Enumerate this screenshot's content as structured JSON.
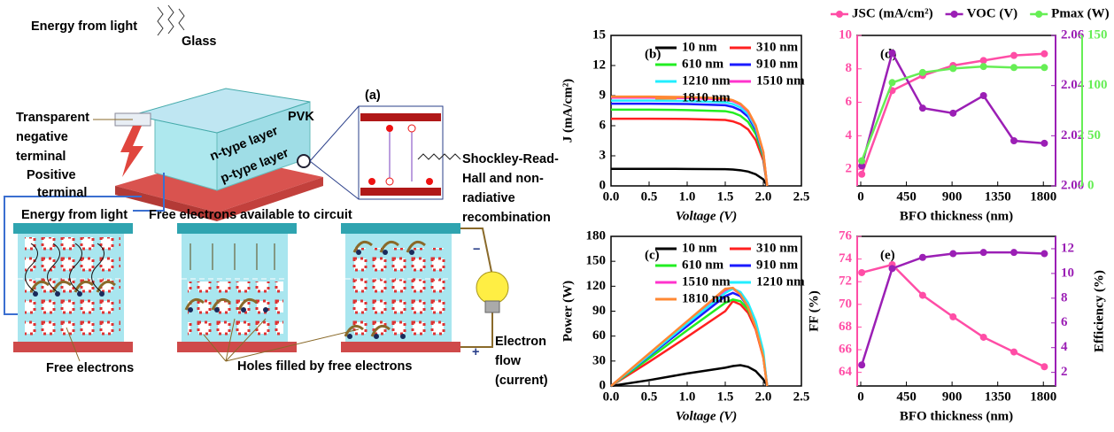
{
  "diagram": {
    "label": "(a)",
    "energy_from_light_top": "Energy from light",
    "glass": "Glass",
    "transparent_terminal": [
      "Transparent",
      "negative",
      "terminal"
    ],
    "pvk": "PVK",
    "n_layer": "n-type layer",
    "p_layer": "p-type layer",
    "positive_terminal": [
      "Positive",
      "terminal"
    ],
    "srh": [
      "Shockley-Read-",
      "Hall and non-",
      "radiative",
      "recombination"
    ],
    "energy_from_light": "Energy from light",
    "free_electrons_circuit": "Free electrons available to circuit",
    "free_electrons": "Free electrons",
    "holes_filled": "Holes filled by free electrons",
    "electron_flow": [
      "Electron",
      "flow",
      "(current)"
    ],
    "minus": "−",
    "plus": "+"
  },
  "chart_data": [
    {
      "type": "line",
      "title": "(b)",
      "xlabel": "Voltage (V)",
      "ylabel": "J (mA/cm²)",
      "xlim": [
        0,
        2.5
      ],
      "xticks": [
        {
          "value": 0,
          "label": "0.0"
        },
        0.5,
        {
          "value": 1,
          "label": "1.0"
        },
        1.5,
        {
          "value": 2,
          "label": "2.0"
        },
        2.5
      ],
      "ylim": [
        0,
        15
      ],
      "yticks": [
        0,
        3,
        6,
        9,
        12,
        15
      ],
      "legend": "upper right",
      "x": [
        0,
        0.5,
        1,
        1.5,
        1.6,
        1.7,
        1.8,
        1.9,
        2,
        2.05
      ],
      "series": [
        {
          "name": "10 nm",
          "color": "#000000",
          "values": [
            1.7,
            1.7,
            1.69,
            1.67,
            1.63,
            1.56,
            1.43,
            1.16,
            0.65,
            0
          ]
        },
        {
          "name": "310 nm",
          "color": "#ff2020",
          "values": [
            6.7,
            6.7,
            6.67,
            6.57,
            6.43,
            6.16,
            5.63,
            4.56,
            2.55,
            0
          ]
        },
        {
          "name": "610 nm",
          "color": "#22ee22",
          "values": [
            7.6,
            7.6,
            7.56,
            7.45,
            7.3,
            6.99,
            6.38,
            5.17,
            2.89,
            0
          ]
        },
        {
          "name": "910 nm",
          "color": "#1a1aff",
          "values": [
            8.2,
            8.2,
            8.16,
            8.04,
            7.87,
            7.54,
            6.89,
            5.58,
            3.12,
            0
          ]
        },
        {
          "name": "1210 nm",
          "color": "#22eeff",
          "values": [
            8.5,
            8.5,
            8.46,
            8.33,
            8.16,
            7.82,
            7.14,
            5.78,
            3.23,
            0
          ]
        },
        {
          "name": "1510 nm",
          "color": "#ff33cc",
          "values": [
            8.8,
            8.8,
            8.76,
            8.62,
            8.45,
            8.1,
            7.39,
            5.98,
            3.34,
            0
          ]
        },
        {
          "name": "1810 nm",
          "color": "#ff8833",
          "values": [
            8.9,
            8.9,
            8.86,
            8.72,
            8.54,
            8.19,
            7.48,
            6.05,
            3.38,
            0
          ]
        }
      ]
    },
    {
      "type": "line",
      "title": "(c)",
      "xlabel": "Voltage (V)",
      "ylabel": "Power (W)",
      "xlim": [
        0,
        2.5
      ],
      "xticks": [
        {
          "value": 0,
          "label": "0.0"
        },
        0.5,
        {
          "value": 1,
          "label": "1.0"
        },
        1.5,
        {
          "value": 2,
          "label": "2.0"
        },
        2.5
      ],
      "ylim": [
        0,
        180
      ],
      "yticks": [
        0,
        30,
        60,
        90,
        120,
        150,
        180
      ],
      "legend": "upper right",
      "x": [
        0,
        0.5,
        1,
        1.5,
        1.6,
        1.7,
        1.8,
        1.9,
        2,
        2.05
      ],
      "series": [
        {
          "name": "10 nm",
          "color": "#000000",
          "values": [
            0,
            7,
            15,
            22,
            24,
            25,
            23,
            18,
            8,
            0
          ]
        },
        {
          "name": "310 nm",
          "color": "#ff2020",
          "values": [
            0,
            29,
            59,
            90,
            102,
            98,
            88,
            68,
            34,
            0
          ]
        },
        {
          "name": "610 nm",
          "color": "#22ee22",
          "values": [
            0,
            33,
            67,
            100,
            104,
            102,
            92,
            72,
            36,
            0
          ]
        },
        {
          "name": "910 nm",
          "color": "#1a1aff",
          "values": [
            0,
            36,
            72,
            108,
            112,
            108,
            95,
            74,
            38,
            0
          ]
        },
        {
          "name": "1510 nm",
          "color": "#ff33cc",
          "values": [
            0,
            38,
            77,
            115,
            117,
            110,
            96,
            72,
            38,
            0
          ]
        },
        {
          "name": "1210 nm",
          "color": "#22eeff",
          "values": [
            0,
            37,
            75,
            112,
            117,
            113,
            100,
            78,
            42,
            0
          ]
        },
        {
          "name": "1810 nm",
          "color": "#ff8833",
          "values": [
            0,
            39,
            78,
            117,
            118,
            110,
            95,
            70,
            35,
            0
          ]
        }
      ]
    },
    {
      "type": "line",
      "title": "(d)",
      "xlabel": "BFO thickness (nm)",
      "legend": "top",
      "markers": true,
      "xlim": [
        -35,
        1920
      ],
      "xticks": [
        0,
        450,
        900,
        1350,
        1800
      ],
      "ylim": [
        1,
        10
      ],
      "yticks": [
        2,
        4,
        6,
        8,
        10
      ],
      "ycolor": "#ff4da6",
      "y2lim": [
        2,
        2.06
      ],
      "y2ticks": [
        {
          "value": 2,
          "label": "2.00"
        },
        2.02,
        2.04,
        2.06
      ],
      "y2color": "#9b1fb5",
      "y3lim": [
        0,
        150
      ],
      "y3ticks": [
        0,
        50,
        100,
        150
      ],
      "y3color": "#66ee55",
      "x": [
        10,
        310,
        610,
        910,
        1210,
        1510,
        1810
      ],
      "series": [
        {
          "name": "JSC (mA/cm²)",
          "color": "#ff4da6",
          "values": [
            1.7,
            6.7,
            7.6,
            8.2,
            8.5,
            8.8,
            8.9
          ]
        },
        {
          "name": "VOC (V)",
          "color": "#9b1fb5",
          "axis": "y2",
          "values": [
            2.008,
            2.053,
            2.031,
            2.029,
            2.036,
            2.018,
            2.017
          ]
        },
        {
          "name": "Pmax (W)",
          "color": "#66ee55",
          "axis": "y3",
          "values": [
            25,
            103,
            113,
            117,
            119,
            118,
            118
          ]
        }
      ]
    },
    {
      "type": "line",
      "title": "(e)",
      "xlabel": "BFO thickness (nm)",
      "ylabel": "FF (%)",
      "y2label": "Efficiency (%)",
      "markers": true,
      "xlim": [
        -35,
        1920
      ],
      "xticks": [
        0,
        450,
        900,
        1350,
        1800
      ],
      "ylim": [
        62.8,
        76
      ],
      "yticks": [
        64,
        66,
        68,
        70,
        72,
        74,
        76
      ],
      "ycolor": "#ff4da6",
      "y2lim": [
        0.9,
        13
      ],
      "y2ticks": [
        2,
        4,
        6,
        8,
        10,
        12
      ],
      "y2color": "#9b1fb5",
      "x": [
        10,
        310,
        610,
        910,
        1210,
        1510,
        1810
      ],
      "series": [
        {
          "color": "#ff4da6",
          "values": [
            72.8,
            73.5,
            70.8,
            68.9,
            67.1,
            65.8,
            64.5
          ]
        },
        {
          "color": "#9b1fb5",
          "axis": "y2",
          "values": [
            2.6,
            10.4,
            11.3,
            11.6,
            11.7,
            11.7,
            11.6
          ]
        }
      ]
    }
  ]
}
